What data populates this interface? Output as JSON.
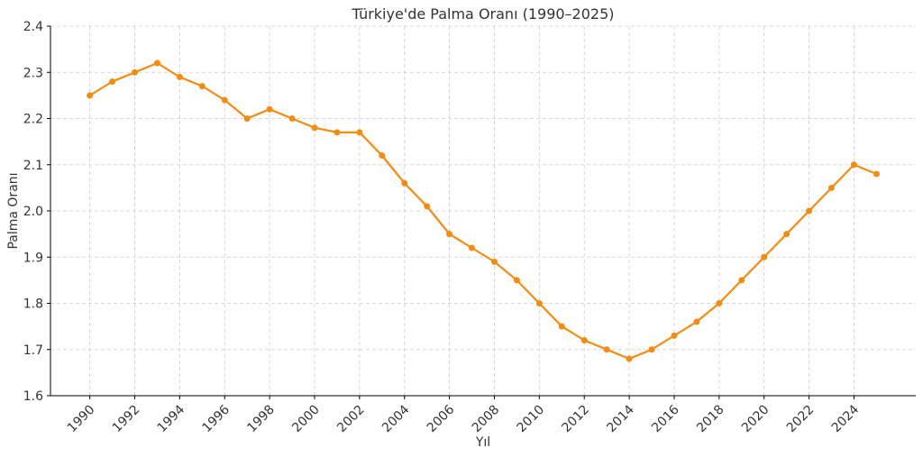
{
  "chart_data": {
    "type": "line",
    "title": "Türkiye'de Palma Oranı (1990–2025)",
    "x_label": "Yıl",
    "y_label": "Palma Oranı",
    "x": [
      1990,
      1991,
      1992,
      1993,
      1994,
      1995,
      1996,
      1997,
      1998,
      1999,
      2000,
      2001,
      2002,
      2003,
      2004,
      2005,
      2006,
      2007,
      2008,
      2009,
      2010,
      2011,
      2012,
      2013,
      2014,
      2015,
      2016,
      2017,
      2018,
      2019,
      2020,
      2021,
      2022,
      2023,
      2024,
      2025
    ],
    "series": [
      {
        "color": "#f28c13",
        "values": [
          2.25,
          2.28,
          2.3,
          2.32,
          2.29,
          2.27,
          2.24,
          2.2,
          2.22,
          2.2,
          2.18,
          2.17,
          2.17,
          2.12,
          2.06,
          2.01,
          1.95,
          1.92,
          1.89,
          1.85,
          1.8,
          1.75,
          1.72,
          1.7,
          1.68,
          1.7,
          1.73,
          1.76,
          1.8,
          1.85,
          1.9,
          1.95,
          2.0,
          2.05,
          2.1,
          2.08
        ]
      }
    ],
    "xlim": [
      1988.25,
      2026.75
    ],
    "xticks": [
      1990,
      1992,
      1994,
      1996,
      1998,
      2000,
      2002,
      2004,
      2006,
      2008,
      2010,
      2012,
      2014,
      2016,
      2018,
      2020,
      2022,
      2024
    ],
    "ylim": [
      1.6,
      2.4
    ],
    "yticks": [
      1.6,
      1.7,
      1.8,
      1.9,
      {
        "value": 2.0,
        "label": "2.0"
      },
      2.1,
      2.2,
      2.3,
      2.4
    ],
    "grid": true
  }
}
